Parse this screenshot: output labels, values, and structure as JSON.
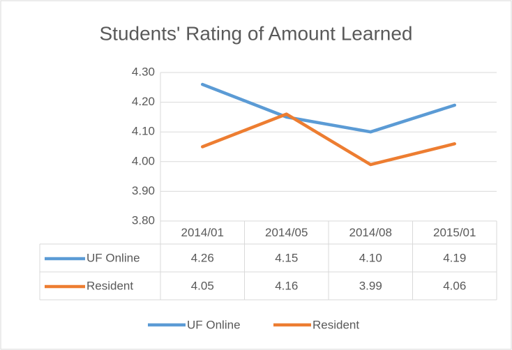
{
  "chart_data": {
    "type": "line",
    "title": "Students' Rating of Amount Learned",
    "categories": [
      "2014/01",
      "2014/05",
      "2014/08",
      "2015/01"
    ],
    "series": [
      {
        "name": "UF Online",
        "color": "#5b9bd5",
        "values": [
          4.26,
          4.15,
          4.1,
          4.19
        ],
        "value_labels": [
          "4.26",
          "4.15",
          "4.10",
          "4.19"
        ]
      },
      {
        "name": "Resident",
        "color": "#ed7d31",
        "values": [
          4.05,
          4.16,
          3.99,
          4.06
        ],
        "value_labels": [
          "4.05",
          "4.16",
          "3.99",
          "4.06"
        ]
      }
    ],
    "ylim": [
      3.8,
      4.3
    ],
    "yticks": [
      {
        "value": 3.8,
        "label": "3.80"
      },
      {
        "value": 3.9,
        "label": "3.90"
      },
      {
        "value": 4.0,
        "label": "4.00"
      },
      {
        "value": 4.1,
        "label": "4.10"
      },
      {
        "value": 4.2,
        "label": "4.20"
      },
      {
        "value": 4.3,
        "label": "4.30"
      }
    ],
    "grid": true,
    "legend": "bottom"
  }
}
